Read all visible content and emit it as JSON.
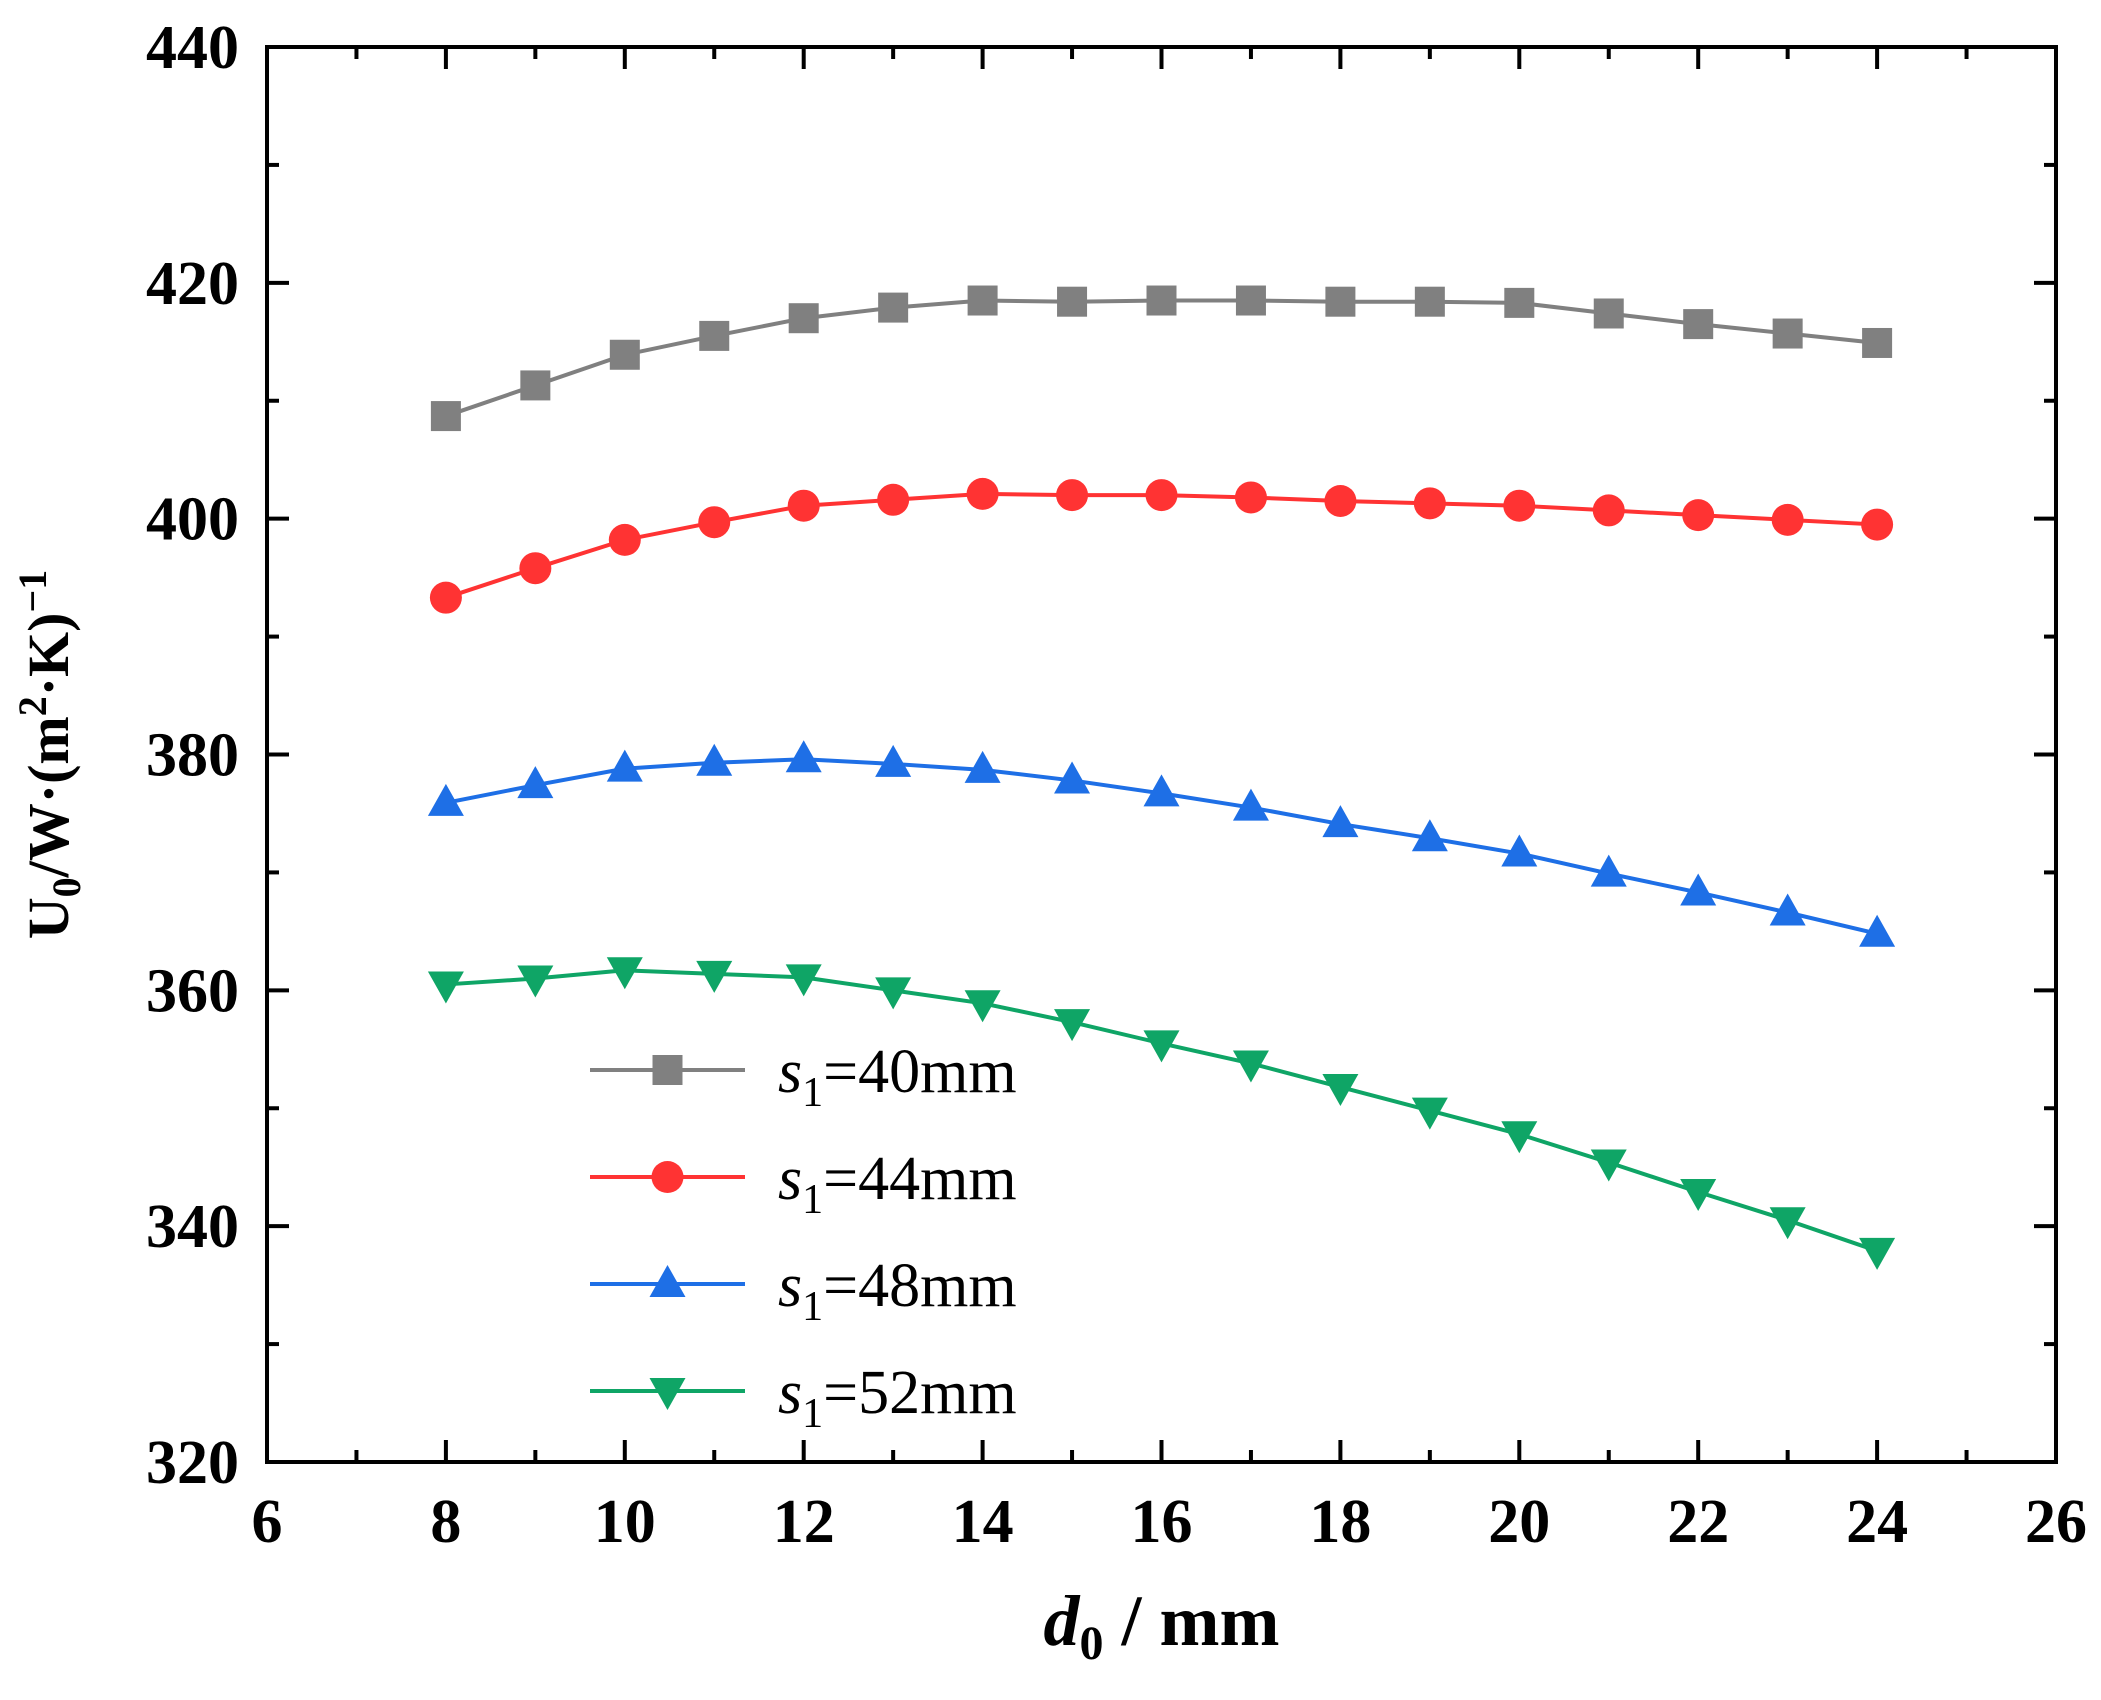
{
  "chart_data": {
    "type": "line",
    "title": "",
    "xlabel": {
      "main": "d",
      "sub": "0",
      "rest": " / mm"
    },
    "ylabel": {
      "u": "U",
      "u_sub": "0",
      "mid": "/W·(m",
      "sup2": "2",
      "end": "·K)",
      "sup_end": "−1"
    },
    "xlim": [
      6,
      26
    ],
    "ylim": [
      320,
      440
    ],
    "xticks": [
      6,
      8,
      10,
      12,
      14,
      16,
      18,
      20,
      22,
      24,
      26
    ],
    "yticks": [
      320,
      340,
      360,
      380,
      400,
      420,
      440
    ],
    "x": [
      8,
      9,
      10,
      11,
      12,
      13,
      14,
      15,
      16,
      17,
      18,
      19,
      20,
      21,
      22,
      23,
      24
    ],
    "series": [
      {
        "name": "s1=40mm",
        "prefix": "s",
        "sub": "1",
        "suffix": "=40mm",
        "marker": "square",
        "color": "#808080",
        "values": [
          408.7,
          411.3,
          413.9,
          415.5,
          417.0,
          417.9,
          418.5,
          418.4,
          418.5,
          418.5,
          418.4,
          418.4,
          418.3,
          417.4,
          416.5,
          415.7,
          414.9
        ]
      },
      {
        "name": "s1=44mm",
        "prefix": "s",
        "sub": "1",
        "suffix": "=44mm",
        "marker": "circle",
        "color": "#FF3333",
        "values": [
          393.3,
          395.8,
          398.2,
          399.7,
          401.1,
          401.6,
          402.1,
          402.0,
          402.0,
          401.8,
          401.5,
          401.3,
          401.1,
          400.7,
          400.3,
          399.9,
          399.5
        ]
      },
      {
        "name": "s1=48mm",
        "prefix": "s",
        "sub": "1",
        "suffix": "=48mm",
        "marker": "triangle-up",
        "color": "#1E6FE6",
        "values": [
          375.9,
          377.4,
          378.8,
          379.3,
          379.6,
          379.2,
          378.7,
          377.8,
          376.7,
          375.5,
          374.1,
          372.9,
          371.6,
          369.9,
          368.3,
          366.6,
          364.8
        ]
      },
      {
        "name": "s1=52mm",
        "prefix": "s",
        "sub": "1",
        "suffix": "=52mm",
        "marker": "triangle-down",
        "color": "#0FA566",
        "values": [
          360.5,
          361.0,
          361.7,
          361.4,
          361.1,
          360.0,
          358.9,
          357.3,
          355.5,
          353.8,
          351.8,
          349.8,
          347.8,
          345.4,
          342.9,
          340.5,
          337.9
        ]
      }
    ],
    "legend_placement": "lower-middle"
  }
}
